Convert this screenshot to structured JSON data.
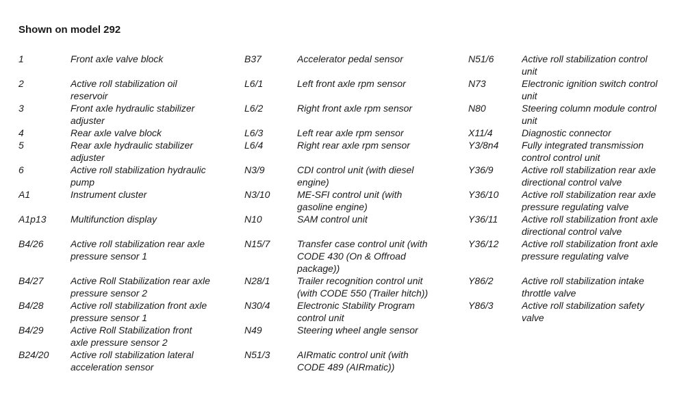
{
  "page": {
    "title": "Shown on model 292",
    "background_color": "#ffffff",
    "text_color": "#1a1a1a"
  },
  "legend": {
    "rows": [
      [
        "1",
        "Front axle valve block",
        "B37",
        "Accelerator pedal sensor",
        "N51/6",
        "Active roll stabilization control\nunit"
      ],
      [
        "2",
        "Active roll stabilization oil\nreservoir",
        "L6/1",
        "Left front axle rpm sensor",
        "N73",
        "Electronic ignition switch control\nunit"
      ],
      [
        "3",
        "Front axle hydraulic stabilizer\nadjuster",
        "L6/2",
        "Right front axle rpm sensor",
        "N80",
        "Steering column module control\nunit"
      ],
      [
        "4",
        "Rear axle valve block",
        "L6/3",
        "Left rear axle rpm sensor",
        "X11/4",
        "Diagnostic connector"
      ],
      [
        "5",
        "Rear axle hydraulic stabilizer\nadjuster",
        "L6/4",
        "Right rear axle rpm sensor",
        "Y3/8n4",
        "Fully integrated transmission\ncontrol control unit"
      ],
      [
        "6",
        "Active roll stabilization hydraulic\npump",
        "N3/9",
        "CDI control unit (with diesel\nengine)",
        "Y36/9",
        "Active roll stabilization rear axle\ndirectional control valve"
      ],
      [
        "A1",
        "Instrument cluster",
        "N3/10",
        "ME-SFI control unit (with\ngasoline engine)",
        "Y36/10",
        "Active roll stabilization rear axle\npressure regulating valve"
      ],
      [
        "A1p13",
        "Multifunction display",
        "N10",
        "SAM control unit",
        "Y36/11",
        "Active roll stabilization front axle\ndirectional control valve"
      ],
      [
        "B4/26",
        "Active roll stabilization rear axle\npressure sensor 1",
        "N15/7",
        "Transfer case control unit (with\nCODE 430 (On & Offroad\npackage))",
        "Y36/12",
        "Active roll stabilization front axle\npressure regulating valve"
      ],
      [
        "B4/27",
        "Active Roll Stabilization rear axle\npressure sensor 2",
        "N28/1",
        "Trailer recognition control unit\n(with CODE 550 (Trailer hitch))",
        "Y86/2",
        "Active roll stabilization intake\nthrottle valve"
      ],
      [
        "B4/28",
        "Active roll stabilization front axle\npressure sensor 1",
        "N30/4",
        "Electronic Stability Program\ncontrol unit",
        "Y86/3",
        "Active roll stabilization safety\nvalve"
      ],
      [
        "B4/29",
        "Active Roll Stabilization front\naxle pressure sensor 2",
        "N49",
        "Steering wheel angle sensor",
        "",
        ""
      ],
      [
        "B24/20",
        "Active roll stabilization lateral\nacceleration sensor",
        "N51/3",
        "AIRmatic control unit (with\nCODE 489 (AIRmatic))",
        "",
        ""
      ]
    ]
  }
}
